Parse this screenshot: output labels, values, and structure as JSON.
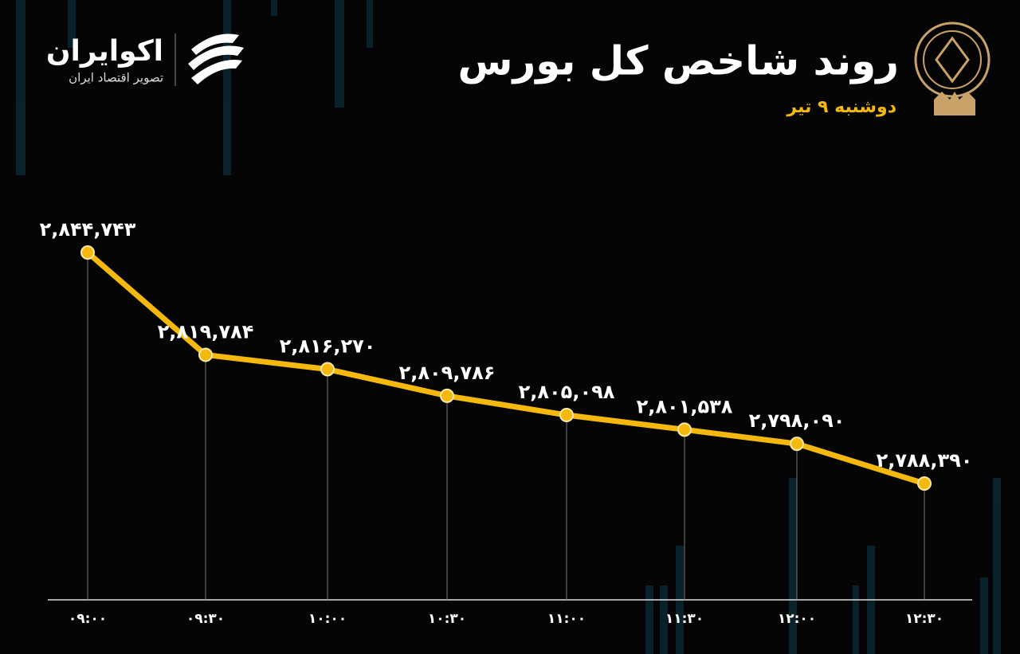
{
  "chart_data": {
    "type": "line",
    "title": "روند شاخص کل بورس",
    "subtitle": "دوشنبه ۹ تیر",
    "brand": "اکوایران",
    "brand_tagline": "تصویر اقتصاد ایران",
    "categories": [
      "۰۹:۰۰",
      "۰۹:۳۰",
      "۱۰:۰۰",
      "۱۰:۳۰",
      "۱۱:۰۰",
      "۱۱:۳۰",
      "۱۲:۰۰",
      "۱۲:۳۰"
    ],
    "values": [
      2844743,
      2819784,
      2816270,
      2809786,
      2805098,
      2801538,
      2798090,
      2788390
    ],
    "value_labels": [
      "۲,۸۴۴,۷۴۳",
      "۲,۸۱۹,۷۸۴",
      "۲,۸۱۶,۲۷۰",
      "۲,۸۰۹,۷۸۶",
      "۲,۸۰۵,۰۹۸",
      "۲,۸۰۱,۵۳۸",
      "۲,۷۹۸,۰۹۰",
      "۲,۷۸۸,۳۹۰"
    ],
    "color": "#f5b80c"
  }
}
